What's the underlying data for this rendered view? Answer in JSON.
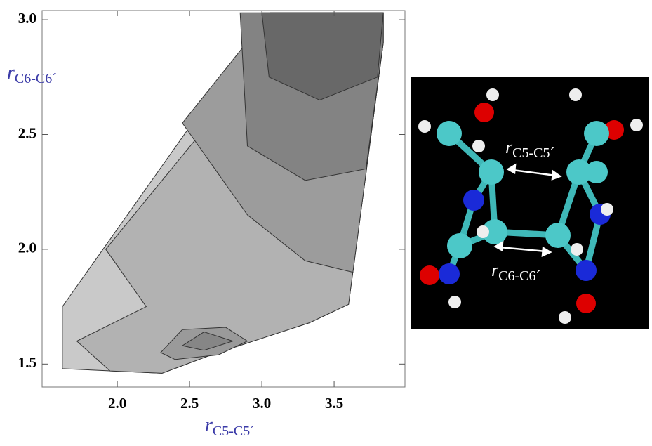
{
  "chart_data": {
    "type": "contour",
    "xlabel": {
      "symbol": "r",
      "subscript": "C5-C5´"
    },
    "ylabel": {
      "symbol": "r",
      "subscript": "C6-C6´"
    },
    "xlim": [
      1.48,
      3.99
    ],
    "ylim": [
      1.4,
      3.04
    ],
    "xticks": [
      {
        "value": 2,
        "label": "2.0"
      },
      2.5,
      {
        "value": 3,
        "label": "3.0"
      },
      3.5
    ],
    "yticks": [
      1.5,
      {
        "value": 2,
        "label": "2.0"
      },
      2.5,
      {
        "value": 3,
        "label": "3.0"
      }
    ],
    "contours": [
      {
        "color": "#c9c9c9",
        "x": [
          1.62,
          3.06,
          3.84,
          3.84,
          3.6,
          3.33,
          2.65,
          2.31,
          1.62
        ],
        "y": [
          1.75,
          3.03,
          3.03,
          2.9,
          1.76,
          1.68,
          1.54,
          1.46,
          1.48
        ]
      },
      {
        "color": "#b2b2b2",
        "x": [
          1.95,
          1.72,
          2.2,
          1.92,
          2.7,
          3.06,
          3.84,
          3.84,
          3.6,
          3.33,
          2.65,
          2.31
        ],
        "y": [
          1.47,
          1.6,
          1.75,
          2.0,
          2.6,
          3.03,
          3.03,
          2.9,
          1.76,
          1.68,
          1.54,
          1.46
        ]
      },
      {
        "color": "#9c9c9c",
        "x": [
          2.45,
          2.9,
          3.3,
          3.63,
          3.84,
          3.84,
          3.06
        ],
        "y": [
          2.55,
          2.15,
          1.95,
          1.9,
          2.9,
          3.03,
          3.03
        ]
      },
      {
        "color": "#838383",
        "x": [
          2.85,
          2.9,
          3.3,
          3.72,
          3.84,
          3.84
        ],
        "y": [
          3.03,
          2.45,
          2.3,
          2.35,
          2.9,
          3.03
        ]
      },
      {
        "color": "#686868",
        "x": [
          3.0,
          3.05,
          3.4,
          3.8,
          3.84
        ],
        "y": [
          3.03,
          2.75,
          2.65,
          2.75,
          3.03
        ]
      },
      {
        "color": "#9a9a9a",
        "x": [
          2.3,
          2.45,
          2.75,
          2.9,
          2.7,
          2.4
        ],
        "y": [
          1.55,
          1.65,
          1.66,
          1.6,
          1.54,
          1.52
        ]
      },
      {
        "color": "#868686",
        "x": [
          2.45,
          2.6,
          2.8,
          2.6
        ],
        "y": [
          1.58,
          1.64,
          1.6,
          1.56
        ]
      }
    ]
  },
  "molecule": {
    "labels": [
      {
        "symbol": "r",
        "subscript": "C5-C5´"
      },
      {
        "symbol": "r",
        "subscript": "C6-C6´"
      }
    ]
  }
}
